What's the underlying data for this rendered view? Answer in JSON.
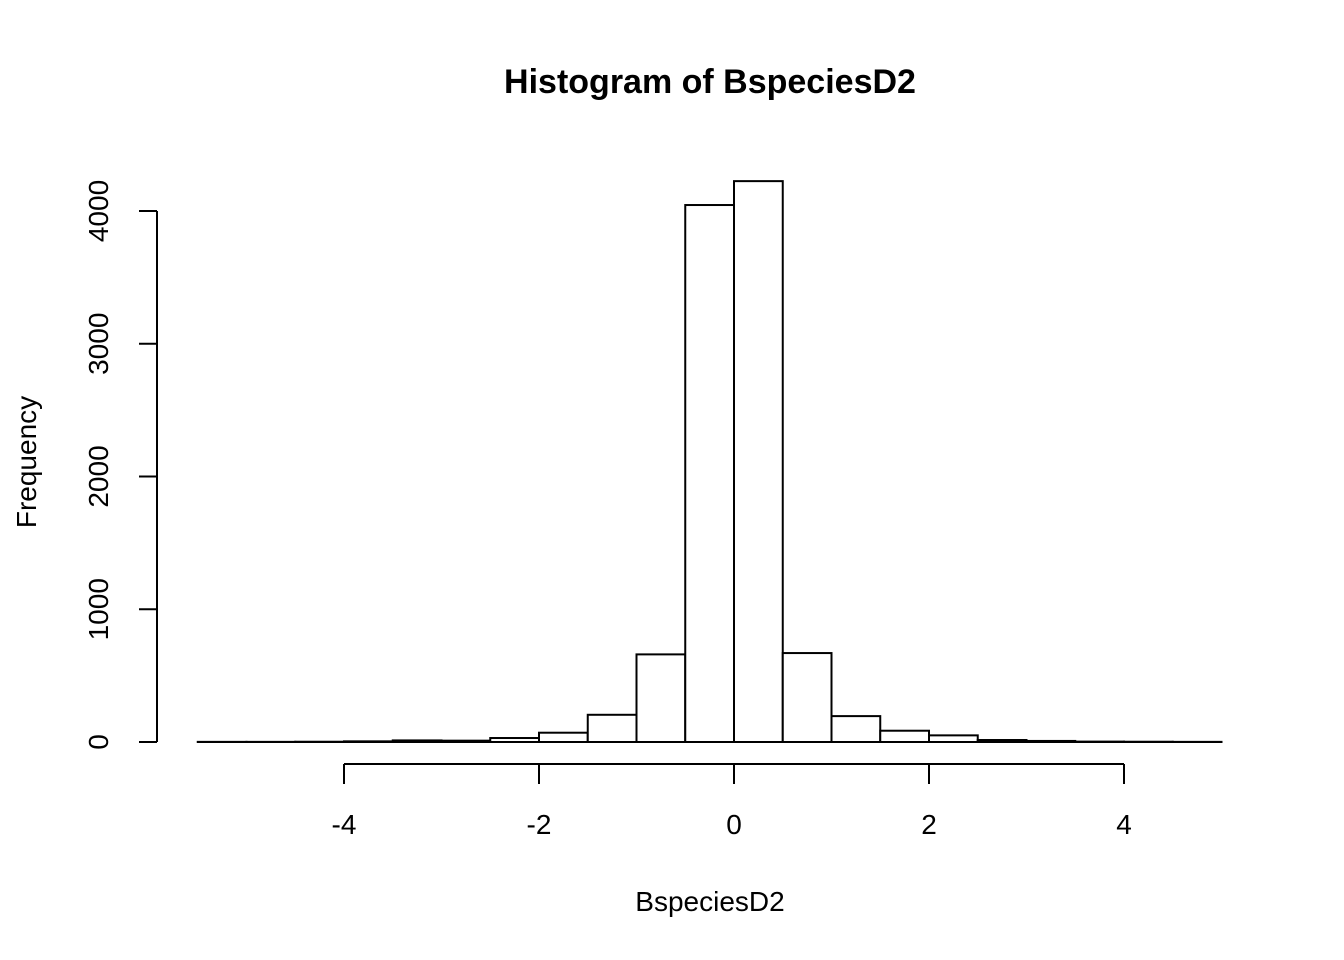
{
  "chart_data": {
    "type": "bar",
    "title": "Histogram of BspeciesD2",
    "xlabel": "BspeciesD2",
    "ylabel": "Frequency",
    "xlim": [
      -5.5,
      5
    ],
    "ylim": [
      0,
      4250
    ],
    "x_ticks": [
      -4,
      -2,
      0,
      2,
      4
    ],
    "y_ticks": [
      0,
      1000,
      2000,
      3000,
      4000
    ],
    "bins": [
      {
        "start": -5.5,
        "end": -5.0,
        "count": 1
      },
      {
        "start": -5.0,
        "end": -4.5,
        "count": 1
      },
      {
        "start": -4.5,
        "end": -4.0,
        "count": 2
      },
      {
        "start": -4.0,
        "end": -3.5,
        "count": 5
      },
      {
        "start": -3.5,
        "end": -3.0,
        "count": 12
      },
      {
        "start": -3.0,
        "end": -2.5,
        "count": 10
      },
      {
        "start": -2.5,
        "end": -2.0,
        "count": 30
      },
      {
        "start": -2.0,
        "end": -1.5,
        "count": 70
      },
      {
        "start": -1.5,
        "end": -1.0,
        "count": 205
      },
      {
        "start": -1.0,
        "end": -0.5,
        "count": 660
      },
      {
        "start": -0.5,
        "end": 0.0,
        "count": 4045
      },
      {
        "start": 0.0,
        "end": 0.5,
        "count": 4225
      },
      {
        "start": 0.5,
        "end": 1.0,
        "count": 670
      },
      {
        "start": 1.0,
        "end": 1.5,
        "count": 195
      },
      {
        "start": 1.5,
        "end": 2.0,
        "count": 85
      },
      {
        "start": 2.0,
        "end": 2.5,
        "count": 50
      },
      {
        "start": 2.5,
        "end": 3.0,
        "count": 15
      },
      {
        "start": 3.0,
        "end": 3.5,
        "count": 8
      },
      {
        "start": 3.5,
        "end": 4.0,
        "count": 3
      },
      {
        "start": 4.0,
        "end": 4.5,
        "count": 2
      },
      {
        "start": 4.5,
        "end": 5.0,
        "count": 1
      }
    ]
  }
}
